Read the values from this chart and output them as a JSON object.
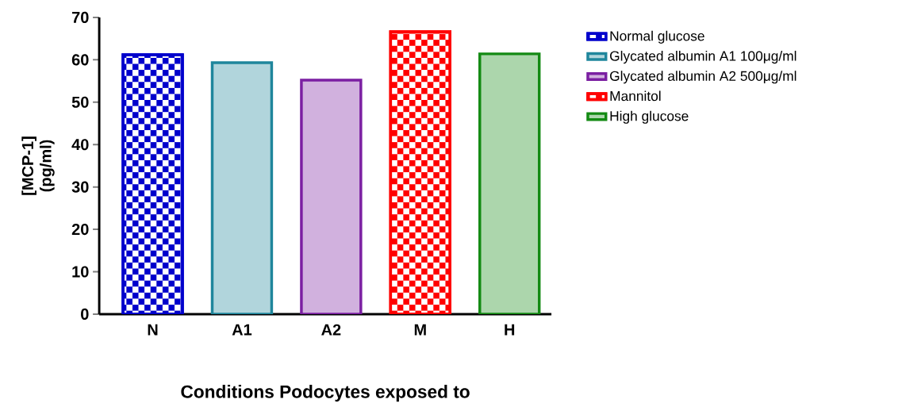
{
  "chart_data": {
    "type": "bar",
    "xlabel": "Conditions Podocytes exposed to",
    "ylabel": "[MCP-1] (pg/ml)",
    "categories": [
      "N",
      "A1",
      "A2",
      "M",
      "H"
    ],
    "series": [
      {
        "name": "Normal glucose",
        "color": "#0000cc",
        "values": [
          61.2,
          null,
          null,
          null,
          null
        ]
      },
      {
        "name": "Glycated albumin A1 100μg/ml",
        "color": "#1f869c",
        "values": [
          null,
          59.3,
          null,
          null,
          null
        ]
      },
      {
        "name": "Glycated albumin A2 500μg/ml",
        "color": "#7b1fa2",
        "values": [
          null,
          null,
          55.2,
          null,
          null
        ]
      },
      {
        "name": "Mannitol",
        "color": "#ff0000",
        "values": [
          null,
          null,
          null,
          66.6,
          null
        ]
      },
      {
        "name": "High glucose",
        "color": "#138a13",
        "values": [
          null,
          null,
          null,
          null,
          61.4
        ]
      }
    ],
    "ylim": [
      0,
      70
    ],
    "yticks": [
      0,
      10,
      20,
      30,
      40,
      50,
      60,
      70
    ],
    "legend": "top right",
    "grid": false
  }
}
